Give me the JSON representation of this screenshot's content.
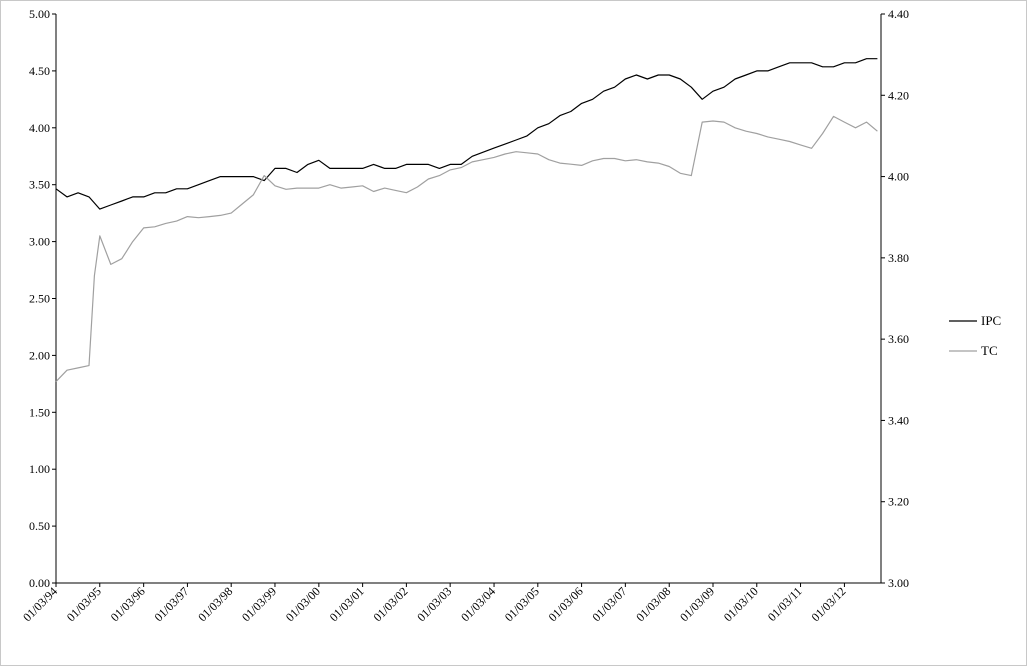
{
  "chart_data": {
    "type": "line",
    "title": "",
    "xlabel": "",
    "ylabel": "",
    "x_ticks": [
      "01/03/94",
      "01/03/95",
      "01/03/96",
      "01/03/97",
      "01/03/98",
      "01/03/99",
      "01/03/00",
      "01/03/01",
      "01/03/02",
      "01/03/03",
      "01/03/04",
      "01/03/05",
      "01/03/06",
      "01/03/07",
      "01/03/08",
      "01/03/09",
      "01/03/10",
      "01/03/11",
      "01/03/12"
    ],
    "x_range": [
      "1994-03-01",
      "2012-12-31"
    ],
    "y_left": {
      "range": [
        0,
        5
      ],
      "ticks": [
        "0.00",
        "0.50",
        "1.00",
        "1.50",
        "2.00",
        "2.50",
        "3.00",
        "3.50",
        "4.00",
        "4.50",
        "5.00"
      ]
    },
    "y_right": {
      "range": [
        3.0,
        4.4
      ],
      "ticks": [
        "3.00",
        "3.20",
        "3.40",
        "3.60",
        "3.80",
        "4.00",
        "4.20",
        "4.40"
      ]
    },
    "grid": false,
    "legend_position": "right",
    "series": [
      {
        "name": "IPC",
        "axis": "right",
        "color": "#000000",
        "points": [
          [
            "1994-03-01",
            3.97
          ],
          [
            "1994-06-01",
            3.95
          ],
          [
            "1994-09-01",
            3.96
          ],
          [
            "1994-12-01",
            3.95
          ],
          [
            "1995-03-01",
            3.92
          ],
          [
            "1995-06-01",
            3.93
          ],
          [
            "1995-09-01",
            3.94
          ],
          [
            "1995-12-01",
            3.95
          ],
          [
            "1996-03-01",
            3.95
          ],
          [
            "1996-06-01",
            3.96
          ],
          [
            "1996-09-01",
            3.96
          ],
          [
            "1996-12-01",
            3.97
          ],
          [
            "1997-03-01",
            3.97
          ],
          [
            "1997-06-01",
            3.98
          ],
          [
            "1997-09-01",
            3.99
          ],
          [
            "1997-12-01",
            4.0
          ],
          [
            "1998-03-01",
            4.0
          ],
          [
            "1998-06-01",
            4.0
          ],
          [
            "1998-09-01",
            4.0
          ],
          [
            "1998-12-01",
            3.99
          ],
          [
            "1999-03-01",
            4.02
          ],
          [
            "1999-06-01",
            4.02
          ],
          [
            "1999-09-01",
            4.01
          ],
          [
            "1999-12-01",
            4.03
          ],
          [
            "2000-03-01",
            4.04
          ],
          [
            "2000-06-01",
            4.02
          ],
          [
            "2000-09-01",
            4.02
          ],
          [
            "2000-12-01",
            4.02
          ],
          [
            "2001-03-01",
            4.02
          ],
          [
            "2001-06-01",
            4.03
          ],
          [
            "2001-09-01",
            4.02
          ],
          [
            "2001-12-01",
            4.02
          ],
          [
            "2002-03-01",
            4.03
          ],
          [
            "2002-06-01",
            4.03
          ],
          [
            "2002-09-01",
            4.03
          ],
          [
            "2002-12-01",
            4.02
          ],
          [
            "2003-03-01",
            4.03
          ],
          [
            "2003-06-01",
            4.03
          ],
          [
            "2003-09-01",
            4.05
          ],
          [
            "2003-12-01",
            4.06
          ],
          [
            "2004-03-01",
            4.07
          ],
          [
            "2004-06-01",
            4.08
          ],
          [
            "2004-09-01",
            4.09
          ],
          [
            "2004-12-01",
            4.1
          ],
          [
            "2005-03-01",
            4.12
          ],
          [
            "2005-06-01",
            4.13
          ],
          [
            "2005-09-01",
            4.15
          ],
          [
            "2005-12-01",
            4.16
          ],
          [
            "2006-03-01",
            4.18
          ],
          [
            "2006-06-01",
            4.19
          ],
          [
            "2006-09-01",
            4.21
          ],
          [
            "2006-12-01",
            4.22
          ],
          [
            "2007-03-01",
            4.24
          ],
          [
            "2007-06-01",
            4.25
          ],
          [
            "2007-09-01",
            4.24
          ],
          [
            "2007-12-01",
            4.25
          ],
          [
            "2008-03-01",
            4.25
          ],
          [
            "2008-06-01",
            4.24
          ],
          [
            "2008-09-01",
            4.22
          ],
          [
            "2008-12-01",
            4.19
          ],
          [
            "2009-03-01",
            4.21
          ],
          [
            "2009-06-01",
            4.22
          ],
          [
            "2009-09-01",
            4.24
          ],
          [
            "2009-12-01",
            4.25
          ],
          [
            "2010-03-01",
            4.26
          ],
          [
            "2010-06-01",
            4.26
          ],
          [
            "2010-09-01",
            4.27
          ],
          [
            "2010-12-01",
            4.28
          ],
          [
            "2011-03-01",
            4.28
          ],
          [
            "2011-06-01",
            4.28
          ],
          [
            "2011-09-01",
            4.27
          ],
          [
            "2011-12-01",
            4.27
          ],
          [
            "2012-03-01",
            4.28
          ],
          [
            "2012-06-01",
            4.28
          ],
          [
            "2012-09-01",
            4.29
          ],
          [
            "2012-12-01",
            4.29
          ]
        ]
      },
      {
        "name": "TC",
        "axis": "left",
        "color": "#a0a0a0",
        "points": [
          [
            "1994-03-01",
            1.77
          ],
          [
            "1994-06-01",
            1.87
          ],
          [
            "1994-09-01",
            1.89
          ],
          [
            "1994-12-01",
            1.91
          ],
          [
            "1995-01-15",
            2.7
          ],
          [
            "1995-03-01",
            3.05
          ],
          [
            "1995-06-01",
            2.8
          ],
          [
            "1995-09-01",
            2.85
          ],
          [
            "1995-12-01",
            3.0
          ],
          [
            "1996-03-01",
            3.12
          ],
          [
            "1996-06-01",
            3.13
          ],
          [
            "1996-09-01",
            3.16
          ],
          [
            "1996-12-01",
            3.18
          ],
          [
            "1997-03-01",
            3.22
          ],
          [
            "1997-06-01",
            3.21
          ],
          [
            "1997-09-01",
            3.22
          ],
          [
            "1997-12-01",
            3.23
          ],
          [
            "1998-03-01",
            3.25
          ],
          [
            "1998-06-01",
            3.33
          ],
          [
            "1998-09-01",
            3.41
          ],
          [
            "1998-12-01",
            3.58
          ],
          [
            "1999-03-01",
            3.49
          ],
          [
            "1999-06-01",
            3.46
          ],
          [
            "1999-09-01",
            3.47
          ],
          [
            "1999-12-01",
            3.47
          ],
          [
            "2000-03-01",
            3.47
          ],
          [
            "2000-06-01",
            3.5
          ],
          [
            "2000-09-01",
            3.47
          ],
          [
            "2000-12-01",
            3.48
          ],
          [
            "2001-03-01",
            3.49
          ],
          [
            "2001-06-01",
            3.44
          ],
          [
            "2001-09-01",
            3.47
          ],
          [
            "2001-12-01",
            3.45
          ],
          [
            "2002-03-01",
            3.43
          ],
          [
            "2002-06-01",
            3.48
          ],
          [
            "2002-09-01",
            3.55
          ],
          [
            "2002-12-01",
            3.58
          ],
          [
            "2003-03-01",
            3.63
          ],
          [
            "2003-06-01",
            3.65
          ],
          [
            "2003-09-01",
            3.7
          ],
          [
            "2003-12-01",
            3.72
          ],
          [
            "2004-03-01",
            3.74
          ],
          [
            "2004-06-01",
            3.77
          ],
          [
            "2004-09-01",
            3.79
          ],
          [
            "2004-12-01",
            3.78
          ],
          [
            "2005-03-01",
            3.77
          ],
          [
            "2005-06-01",
            3.72
          ],
          [
            "2005-09-01",
            3.69
          ],
          [
            "2005-12-01",
            3.68
          ],
          [
            "2006-03-01",
            3.67
          ],
          [
            "2006-06-01",
            3.71
          ],
          [
            "2006-09-01",
            3.73
          ],
          [
            "2006-12-01",
            3.73
          ],
          [
            "2007-03-01",
            3.71
          ],
          [
            "2007-06-01",
            3.72
          ],
          [
            "2007-09-01",
            3.7
          ],
          [
            "2007-12-01",
            3.69
          ],
          [
            "2008-03-01",
            3.66
          ],
          [
            "2008-06-01",
            3.6
          ],
          [
            "2008-09-01",
            3.58
          ],
          [
            "2008-12-01",
            4.05
          ],
          [
            "2009-03-01",
            4.06
          ],
          [
            "2009-06-01",
            4.05
          ],
          [
            "2009-09-01",
            4.0
          ],
          [
            "2009-12-01",
            3.97
          ],
          [
            "2010-03-01",
            3.95
          ],
          [
            "2010-06-01",
            3.92
          ],
          [
            "2010-09-01",
            3.9
          ],
          [
            "2010-12-01",
            3.88
          ],
          [
            "2011-03-01",
            3.85
          ],
          [
            "2011-06-01",
            3.82
          ],
          [
            "2011-09-01",
            3.95
          ],
          [
            "2011-12-01",
            4.1
          ],
          [
            "2012-03-01",
            4.05
          ],
          [
            "2012-06-01",
            4.0
          ],
          [
            "2012-09-01",
            4.05
          ],
          [
            "2012-12-01",
            3.97
          ]
        ]
      }
    ]
  }
}
